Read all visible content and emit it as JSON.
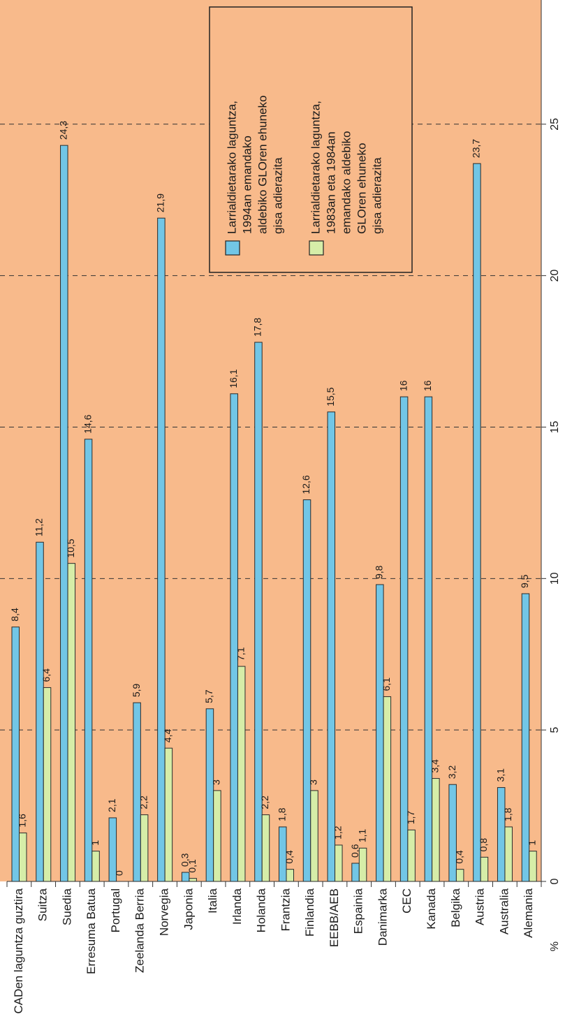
{
  "chart_data": {
    "type": "bar",
    "categories": [
      "CADen laguntza guztira",
      "Suitza",
      "Suedia",
      "Erresuma Batua",
      "Portugal",
      "Zeelanda Berria",
      "Norvegia",
      "Japonia",
      "Italia",
      "Irlanda",
      "Holanda",
      "Frantzia",
      "Finlandia",
      "EEBB/AEB",
      "Espainia",
      "Danimarka",
      "CEC",
      "Kanada",
      "Belgika",
      "Austria",
      "Australia",
      "Alemania"
    ],
    "series": [
      {
        "name": "Larrialdietarako laguntza,\n1994an emandako\naldebiko GLOren ehuneko\ngisa adierazita",
        "color": "#72c6e6",
        "values": [
          8.4,
          11.2,
          24.3,
          14.6,
          2.1,
          5.9,
          21.9,
          0.3,
          5.7,
          16.1,
          17.8,
          1.8,
          12.6,
          15.5,
          0.6,
          9.8,
          16,
          16,
          3.2,
          23.7,
          3.1,
          9.5
        ],
        "value_labels": [
          "8,4",
          "11,2",
          "24,3",
          "14,6",
          "2,1",
          "5,9",
          "21,9",
          "0,3",
          "5,7",
          "16,1",
          "17,8",
          "1,8",
          "12,6",
          "15,5",
          "0,6",
          "9,8",
          "16",
          "16",
          "3,2",
          "23,7",
          "3,1",
          "9,5"
        ]
      },
      {
        "name": "Larrialdietarako laguntza,\n1983an eta 1984an\nemandako aldebiko\nGLOren ehuneko\ngisa adierazita",
        "color": "#d6eda8",
        "values": [
          1.6,
          6.4,
          10.5,
          1,
          0,
          2.2,
          4.4,
          0.1,
          3,
          7.1,
          2.2,
          0.4,
          3,
          1.2,
          1.1,
          6.1,
          1.7,
          3.4,
          0.4,
          0.8,
          1.8,
          1
        ],
        "value_labels": [
          "1,6",
          "6,4",
          "10,5",
          "1",
          "0",
          "2,2",
          "4,4",
          "0,1",
          "3",
          "7,1",
          "2,2",
          "0,4",
          "3",
          "1,2",
          "1,1",
          "6,1",
          "1,7",
          "3,4",
          "0,4",
          "0,8",
          "1,8",
          "1"
        ]
      }
    ],
    "ylabel": "%",
    "ylim": [
      0,
      29.1
    ],
    "yticks": [
      0,
      5,
      10,
      15,
      20,
      25
    ],
    "grid": true,
    "background": "#f8ba8b"
  }
}
